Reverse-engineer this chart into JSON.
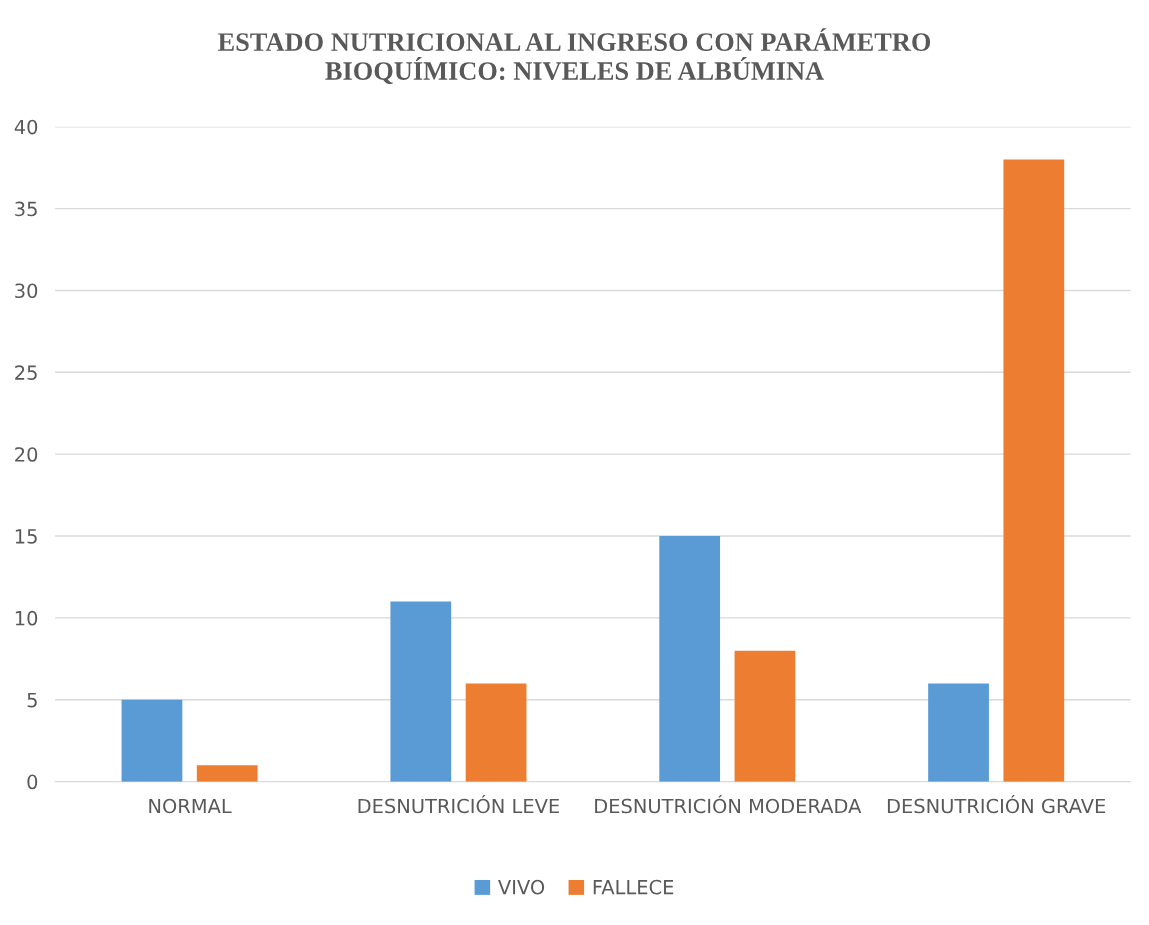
{
  "chart_data": {
    "type": "bar",
    "title": "ESTADO NUTRICIONAL AL INGRESO CON PARÁMETRO\nBIOQUÍMICO: NIVELES DE ALBÚMINA",
    "categories": [
      "NORMAL",
      "DESNUTRICIÓN LEVE",
      "DESNUTRICIÓN MODERADA",
      "DESNUTRICIÓN GRAVE"
    ],
    "series": [
      {
        "name": "VIVO",
        "color": "#5b9bd5",
        "values": [
          5,
          11,
          15,
          6
        ]
      },
      {
        "name": "FALLECE",
        "color": "#ed7d31",
        "values": [
          1,
          6,
          8,
          38
        ]
      }
    ],
    "ylim": [
      0,
      40
    ],
    "yticks": [
      0,
      5,
      10,
      15,
      20,
      25,
      30,
      35,
      40
    ],
    "grid": "y",
    "legend": "bottom"
  }
}
